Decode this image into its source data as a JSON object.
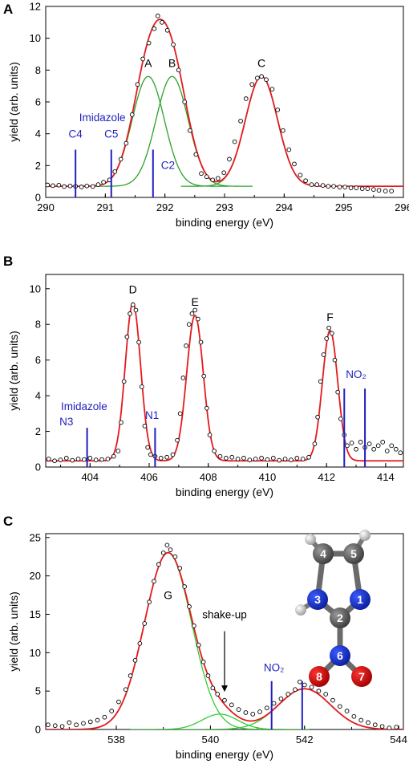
{
  "colors": {
    "fit": "#e41a1c",
    "component_green": "#2ca02c",
    "component_lightgreen": "#33cc33",
    "marker_blue": "#1f1fbf",
    "points": "#000000"
  },
  "chart_data": [
    {
      "panel": "A",
      "type": "scatter",
      "xlabel": "binding energy (eV)",
      "ylabel": "yield (arb. units)",
      "xlim": [
        290,
        296
      ],
      "ylim": [
        0,
        12
      ],
      "xticks": [
        "290",
        "291",
        "292",
        "293",
        "294",
        "295",
        "296"
      ],
      "yticks": [
        "0",
        "2",
        "4",
        "6",
        "8",
        "10",
        "12"
      ],
      "grid": false,
      "background": 0.7,
      "peaks": [
        {
          "label": "A",
          "center": 291.72,
          "height": 6.9,
          "sigma": 0.27
        },
        {
          "label": "B",
          "center": 292.12,
          "height": 6.9,
          "sigma": 0.27
        },
        {
          "label": "C",
          "center": 293.62,
          "height": 6.9,
          "sigma": 0.27
        }
      ],
      "component_color": "#2ca02c",
      "data_points": [
        [
          290.03,
          0.78
        ],
        [
          290.12,
          0.74
        ],
        [
          290.22,
          0.77
        ],
        [
          290.31,
          0.68
        ],
        [
          290.41,
          0.72
        ],
        [
          290.5,
          0.7
        ],
        [
          290.6,
          0.66
        ],
        [
          290.69,
          0.72
        ],
        [
          290.79,
          0.69
        ],
        [
          290.88,
          0.8
        ],
        [
          290.97,
          0.96
        ],
        [
          291.07,
          1.1
        ],
        [
          291.16,
          1.62
        ],
        [
          291.26,
          2.4
        ],
        [
          291.35,
          3.4
        ],
        [
          291.45,
          5.2
        ],
        [
          291.54,
          7.1
        ],
        [
          291.63,
          8.7
        ],
        [
          291.73,
          9.7
        ],
        [
          291.82,
          10.6
        ],
        [
          291.88,
          11.4
        ],
        [
          291.95,
          11.0
        ],
        [
          292.04,
          10.5
        ],
        [
          292.14,
          9.6
        ],
        [
          292.23,
          8.0
        ],
        [
          292.33,
          6.0
        ],
        [
          292.42,
          4.2
        ],
        [
          292.52,
          2.7
        ],
        [
          292.61,
          1.5
        ],
        [
          292.7,
          1.3
        ],
        [
          292.8,
          1.1
        ],
        [
          292.89,
          1.2
        ],
        [
          292.99,
          1.55
        ],
        [
          293.08,
          2.4
        ],
        [
          293.17,
          3.5
        ],
        [
          293.27,
          4.8
        ],
        [
          293.36,
          6.2
        ],
        [
          293.46,
          7.1
        ],
        [
          293.55,
          7.5
        ],
        [
          293.62,
          7.6
        ],
        [
          293.7,
          7.4
        ],
        [
          293.8,
          6.8
        ],
        [
          293.89,
          5.5
        ],
        [
          293.98,
          4.2
        ],
        [
          294.08,
          3.0
        ],
        [
          294.17,
          2.1
        ],
        [
          294.27,
          1.4
        ],
        [
          294.36,
          1.05
        ],
        [
          294.46,
          0.8
        ],
        [
          294.55,
          0.8
        ],
        [
          294.65,
          0.75
        ],
        [
          294.74,
          0.7
        ],
        [
          294.83,
          0.7
        ],
        [
          294.93,
          0.65
        ],
        [
          295.02,
          0.65
        ],
        [
          295.12,
          0.6
        ],
        [
          295.21,
          0.6
        ],
        [
          295.31,
          0.55
        ],
        [
          295.4,
          0.55
        ],
        [
          295.5,
          0.5
        ],
        [
          295.59,
          0.45
        ],
        [
          295.7,
          0.4
        ],
        [
          295.8,
          0.4
        ]
      ],
      "markers": [
        {
          "x": 290.5,
          "height": 3.0
        },
        {
          "x": 291.1,
          "height": 3.0
        },
        {
          "x": 291.8,
          "height": 3.0
        }
      ],
      "annotations": [
        {
          "text": "Imidazole",
          "x": 290.95,
          "y": 4.8
        },
        {
          "text": "C4",
          "x": 290.5,
          "y": 3.75
        },
        {
          "text": "C5",
          "x": 291.1,
          "y": 3.75
        },
        {
          "text": "C2",
          "x": 292.05,
          "y": 1.8
        }
      ]
    },
    {
      "panel": "B",
      "type": "scatter",
      "xlabel": "binding energy (eV)",
      "ylabel": "yield (arb. units)",
      "xlim": [
        402.5,
        414.6
      ],
      "ylim": [
        0,
        10.8
      ],
      "xticks": [
        "404",
        "406",
        "408",
        "410",
        "412",
        "414"
      ],
      "yticks": [
        "0",
        "2",
        "4",
        "6",
        "8",
        "10"
      ],
      "grid": false,
      "background": 0.35,
      "peaks": [
        {
          "label": "D",
          "center": 405.45,
          "height": 8.85,
          "sigma": 0.26
        },
        {
          "label": "E",
          "center": 407.55,
          "height": 8.15,
          "sigma": 0.28
        },
        {
          "label": "F",
          "center": 412.12,
          "height": 7.3,
          "sigma": 0.26
        }
      ],
      "data_points": [
        [
          402.6,
          0.45
        ],
        [
          402.8,
          0.35
        ],
        [
          403.0,
          0.4
        ],
        [
          403.2,
          0.5
        ],
        [
          403.4,
          0.38
        ],
        [
          403.6,
          0.45
        ],
        [
          403.8,
          0.42
        ],
        [
          404.0,
          0.5
        ],
        [
          404.2,
          0.4
        ],
        [
          404.4,
          0.42
        ],
        [
          404.6,
          0.45
        ],
        [
          404.8,
          0.6
        ],
        [
          404.95,
          0.9
        ],
        [
          405.05,
          2.5
        ],
        [
          405.15,
          4.8
        ],
        [
          405.25,
          7.3
        ],
        [
          405.35,
          8.6
        ],
        [
          405.45,
          9.1
        ],
        [
          405.55,
          8.8
        ],
        [
          405.65,
          7.0
        ],
        [
          405.75,
          4.5
        ],
        [
          405.85,
          2.3
        ],
        [
          405.95,
          1.1
        ],
        [
          406.05,
          0.7
        ],
        [
          406.2,
          0.6
        ],
        [
          406.4,
          0.5
        ],
        [
          406.6,
          0.55
        ],
        [
          406.8,
          0.7
        ],
        [
          406.95,
          1.5
        ],
        [
          407.05,
          3.0
        ],
        [
          407.15,
          5.0
        ],
        [
          407.25,
          6.8
        ],
        [
          407.35,
          8.0
        ],
        [
          407.45,
          8.6
        ],
        [
          407.55,
          8.8
        ],
        [
          407.65,
          8.3
        ],
        [
          407.75,
          7.0
        ],
        [
          407.85,
          5.1
        ],
        [
          407.95,
          3.3
        ],
        [
          408.05,
          1.8
        ],
        [
          408.2,
          0.9
        ],
        [
          408.4,
          0.6
        ],
        [
          408.6,
          0.5
        ],
        [
          408.8,
          0.55
        ],
        [
          409.0,
          0.45
        ],
        [
          409.2,
          0.5
        ],
        [
          409.4,
          0.4
        ],
        [
          409.6,
          0.45
        ],
        [
          409.8,
          0.5
        ],
        [
          410.0,
          0.42
        ],
        [
          410.2,
          0.5
        ],
        [
          410.4,
          0.38
        ],
        [
          410.6,
          0.45
        ],
        [
          410.8,
          0.4
        ],
        [
          411.0,
          0.5
        ],
        [
          411.2,
          0.45
        ],
        [
          411.4,
          0.55
        ],
        [
          411.6,
          1.3
        ],
        [
          411.7,
          2.8
        ],
        [
          411.8,
          4.8
        ],
        [
          411.9,
          6.3
        ],
        [
          412.0,
          7.2
        ],
        [
          412.08,
          7.8
        ],
        [
          412.18,
          7.5
        ],
        [
          412.28,
          6.0
        ],
        [
          412.38,
          4.2
        ],
        [
          412.48,
          2.7
        ],
        [
          412.6,
          1.8
        ],
        [
          412.7,
          1.2
        ],
        [
          412.85,
          1.35
        ],
        [
          413.0,
          1.0
        ],
        [
          413.15,
          1.4
        ],
        [
          413.3,
          1.1
        ],
        [
          413.45,
          1.3
        ],
        [
          413.6,
          1.0
        ],
        [
          413.75,
          1.2
        ],
        [
          413.9,
          1.4
        ],
        [
          414.05,
          0.9
        ],
        [
          414.2,
          1.2
        ],
        [
          414.35,
          1.0
        ],
        [
          414.5,
          0.8
        ]
      ],
      "markers": [
        {
          "x": 403.9,
          "height": 2.2
        },
        {
          "x": 406.2,
          "height": 2.2
        },
        {
          "x": 412.6,
          "height": 4.4
        },
        {
          "x": 413.3,
          "height": 4.4
        }
      ],
      "annotations": [
        {
          "text": "Imidazole",
          "x": 403.8,
          "y": 3.2
        },
        {
          "text": "N3",
          "x": 403.2,
          "y": 2.35
        },
        {
          "text": "N1",
          "x": 406.1,
          "y": 2.7
        },
        {
          "text": "NO₂",
          "x": 413.0,
          "y": 5.0
        }
      ]
    },
    {
      "panel": "C",
      "type": "scatter",
      "xlabel": "binding energy (eV)",
      "ylabel": "yield (arb. units)",
      "xlim": [
        536.5,
        544.1
      ],
      "ylim": [
        0,
        25.5
      ],
      "xticks": [
        "538",
        "540",
        "542",
        "544"
      ],
      "yticks": [
        "0",
        "5",
        "10",
        "15",
        "20",
        "25"
      ],
      "grid": false,
      "background": 0.0,
      "peaks": [
        {
          "label": "G",
          "center": 539.1,
          "height": 23.0,
          "sigma": 0.5
        },
        {
          "label": "",
          "center": 540.2,
          "height": 2.0,
          "sigma": 0.38
        },
        {
          "label": "",
          "center": 542.0,
          "height": 5.3,
          "sigma": 0.55
        }
      ],
      "component_color": "#33cc33",
      "data_points": [
        [
          536.55,
          0.6
        ],
        [
          536.7,
          0.5
        ],
        [
          536.85,
          0.4
        ],
        [
          537.0,
          0.9
        ],
        [
          537.15,
          0.6
        ],
        [
          537.3,
          0.8
        ],
        [
          537.45,
          1.0
        ],
        [
          537.6,
          1.2
        ],
        [
          537.75,
          1.6
        ],
        [
          537.9,
          2.4
        ],
        [
          538.05,
          3.6
        ],
        [
          538.2,
          5.2
        ],
        [
          538.3,
          7.0
        ],
        [
          538.4,
          9.0
        ],
        [
          538.5,
          11.2
        ],
        [
          538.6,
          13.8
        ],
        [
          538.7,
          16.6
        ],
        [
          538.8,
          19.3
        ],
        [
          538.9,
          21.5
        ],
        [
          539.0,
          23.0
        ],
        [
          539.08,
          24.0
        ],
        [
          539.15,
          23.4
        ],
        [
          539.25,
          22.5
        ],
        [
          539.35,
          21.0
        ],
        [
          539.45,
          18.6
        ],
        [
          539.55,
          16.0
        ],
        [
          539.65,
          13.5
        ],
        [
          539.75,
          11.0
        ],
        [
          539.85,
          8.8
        ],
        [
          539.95,
          7.0
        ],
        [
          540.05,
          5.4
        ],
        [
          540.15,
          4.6
        ],
        [
          540.3,
          3.8
        ],
        [
          540.45,
          3.2
        ],
        [
          540.6,
          2.6
        ],
        [
          540.75,
          2.2
        ],
        [
          540.9,
          2.0
        ],
        [
          541.05,
          2.3
        ],
        [
          541.2,
          2.8
        ],
        [
          541.35,
          3.4
        ],
        [
          541.5,
          4.0
        ],
        [
          541.65,
          4.6
        ],
        [
          541.8,
          5.2
        ],
        [
          541.9,
          6.2
        ],
        [
          542.0,
          5.8
        ],
        [
          542.15,
          5.5
        ],
        [
          542.3,
          5.0
        ],
        [
          542.45,
          4.6
        ],
        [
          542.6,
          3.8
        ],
        [
          542.75,
          3.0
        ],
        [
          542.9,
          2.4
        ],
        [
          543.05,
          1.7
        ],
        [
          543.2,
          1.2
        ],
        [
          543.35,
          0.9
        ],
        [
          543.5,
          0.6
        ],
        [
          543.65,
          0.4
        ],
        [
          543.8,
          0.2
        ],
        [
          543.95,
          0.3
        ]
      ],
      "markers": [
        {
          "x": 541.3,
          "height": 6.3
        },
        {
          "x": 541.95,
          "height": 6.3
        }
      ],
      "annotations": [
        {
          "text": "shake-up",
          "x": 540.3,
          "y": 14.5
        },
        {
          "text": "NO₂",
          "x": 541.35,
          "y": 7.6
        }
      ],
      "arrow": {
        "x": 540.3,
        "y_from": 12.8,
        "y_to": 4.9
      }
    }
  ],
  "molecule": {
    "atoms": [
      {
        "label": "4",
        "color": "gray"
      },
      {
        "label": "5",
        "color": "gray"
      },
      {
        "label": "3",
        "color": "blue"
      },
      {
        "label": "1",
        "color": "blue"
      },
      {
        "label": "2",
        "color": "gray"
      },
      {
        "label": "6",
        "color": "blue"
      },
      {
        "label": "8",
        "color": "red"
      },
      {
        "label": "7",
        "color": "red"
      }
    ]
  }
}
